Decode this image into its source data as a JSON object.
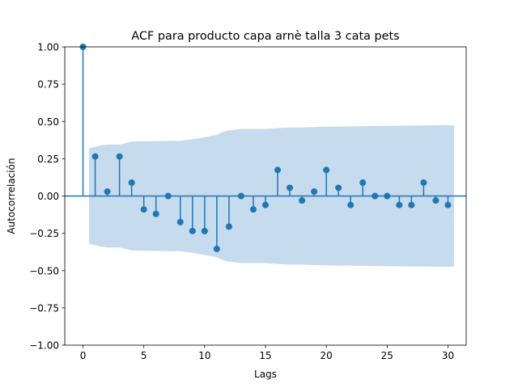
{
  "chart_data": {
    "type": "stem",
    "title": "ACF para producto capa arnè talla 3 cata pets",
    "xlabel": "Lags",
    "ylabel": "Autocorrelación",
    "xlim": [
      -1.5,
      31.5
    ],
    "ylim": [
      -1.0,
      1.0
    ],
    "xticks": [
      0,
      5,
      10,
      15,
      20,
      25,
      30
    ],
    "xtick_labels": [
      "0",
      "5",
      "10",
      "15",
      "20",
      "25",
      "30"
    ],
    "yticks": [
      -1.0,
      -0.75,
      -0.5,
      -0.25,
      0.0,
      0.25,
      0.5,
      0.75,
      1.0
    ],
    "ytick_labels": [
      "−1.00",
      "−0.75",
      "−0.50",
      "−0.25",
      "0.00",
      "0.25",
      "0.50",
      "0.75",
      "1.00"
    ],
    "lags": [
      0,
      1,
      2,
      3,
      4,
      5,
      6,
      7,
      8,
      9,
      10,
      11,
      12,
      13,
      14,
      15,
      16,
      17,
      18,
      19,
      20,
      21,
      22,
      23,
      24,
      25,
      26,
      27,
      28,
      29,
      30
    ],
    "values": [
      1.0,
      0.265,
      0.03,
      0.265,
      0.09,
      -0.09,
      -0.12,
      0.0,
      -0.175,
      -0.235,
      -0.235,
      -0.355,
      -0.205,
      0.0,
      -0.09,
      -0.06,
      0.175,
      0.055,
      -0.03,
      0.03,
      0.175,
      0.055,
      -0.06,
      0.09,
      0.0,
      0.0,
      -0.06,
      -0.06,
      0.09,
      -0.03,
      -0.06
    ],
    "confint": {
      "lags": [
        0.5,
        1,
        1.5,
        2,
        3,
        3.5,
        4,
        5,
        6,
        7,
        8,
        9,
        10,
        11,
        11.5,
        12,
        13,
        15,
        16,
        17,
        18,
        20,
        25,
        30,
        30.5
      ],
      "upper": [
        0.32,
        0.33,
        0.34,
        0.345,
        0.345,
        0.355,
        0.365,
        0.367,
        0.368,
        0.37,
        0.37,
        0.38,
        0.395,
        0.41,
        0.43,
        0.44,
        0.45,
        0.45,
        0.455,
        0.46,
        0.46,
        0.465,
        0.47,
        0.475,
        0.475
      ]
    },
    "colors": {
      "stem": "#1f77b4",
      "marker": "#1f77b4",
      "confint_fill": "#c6dbed",
      "baseline": "#1f77b4"
    },
    "grid": false,
    "legend": "none"
  }
}
